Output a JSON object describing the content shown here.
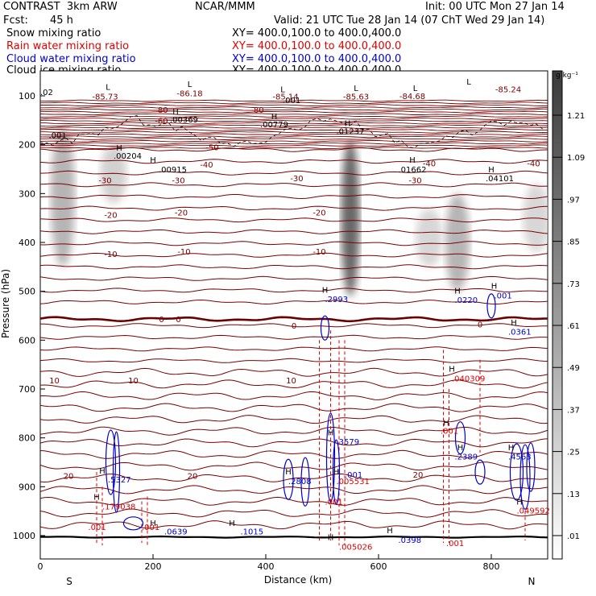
{
  "header": {
    "title_left": "CONTRAST  3km ARW",
    "title_center": "NCAR/MMM",
    "init": "Init: 00 UTC Mon 27 Jan 14",
    "fcst_label": "Fcst:",
    "fcst_value": "45 h",
    "valid": "Valid: 21 UTC Tue 28 Jan 14 (07 ChT Wed 29 Jan 14)",
    "fields": [
      {
        "name": "Snow mixing ratio",
        "xy": "XY= 400.0,100.0 to 400.0,400.0",
        "color": "#000000"
      },
      {
        "name": "Rain water mixing ratio",
        "xy": "XY= 400.0,100.0 to 400.0,400.0",
        "color": "#e00000"
      },
      {
        "name": "Cloud water mixing ratio",
        "xy": "XY= 400.0,100.0 to 400.0,400.0",
        "color": "#0000cc"
      },
      {
        "name": "Cloud ice mixing ratio",
        "xy": "XY= 400.0,100.0 to 400.0,400.0",
        "color": "#000000"
      }
    ]
  },
  "chart_data": {
    "type": "heatmap",
    "title": "Vertical cross-section",
    "xlabel": "Distance (km)",
    "ylabel": "Pressure (hPa)",
    "xlim": [
      0,
      900
    ],
    "ylim": [
      1040,
      50
    ],
    "x_ticks": [
      0,
      200,
      400,
      600,
      800
    ],
    "y_ticks": [
      100,
      200,
      300,
      400,
      500,
      600,
      700,
      800,
      900,
      1000
    ],
    "x_end_labels": {
      "left": "S",
      "right": "N"
    },
    "colorbar": {
      "unit": "g kg⁻¹",
      "labels": [
        "1.21",
        "1.09",
        ".97",
        ".85",
        ".73",
        ".61",
        ".49",
        ".37",
        ".25",
        ".13",
        ".01"
      ]
    },
    "temperature_contours": [
      {
        "label": "-80",
        "p": 128
      },
      {
        "label": "-60",
        "p": 150
      },
      {
        "label": "-50",
        "p": 205
      },
      {
        "label": "-40",
        "p": 238
      },
      {
        "label": "-30",
        "p": 272
      },
      {
        "label": "-20",
        "p": 343
      },
      {
        "label": "-10",
        "p": 423
      },
      {
        "label": "0",
        "p": 557
      },
      {
        "label": "10",
        "p": 682
      },
      {
        "label": "20",
        "p": 877
      }
    ],
    "contour_labels": [
      {
        "text": "-85.73",
        "x": 115,
        "p": 101,
        "color": "#7a0000"
      },
      {
        "text": "-86.18",
        "x": 265,
        "p": 94,
        "color": "#7a0000"
      },
      {
        "text": "-85.63",
        "x": 560,
        "p": 101,
        "color": "#7a0000"
      },
      {
        "text": "-84.68",
        "x": 660,
        "p": 100,
        "color": "#7a0000"
      },
      {
        "text": "-85.24",
        "x": 830,
        "p": 86,
        "color": "#7a0000"
      },
      {
        "text": "-85.14",
        "x": 435,
        "p": 101,
        "color": "#7a0000"
      },
      {
        "text": "-80",
        "x": 215,
        "p": 128,
        "color": "#7a0000"
      },
      {
        "text": "-80",
        "x": 385,
        "p": 128,
        "color": "#7a0000"
      },
      {
        "text": "-60",
        "x": 215,
        "p": 150,
        "color": "#7a0000"
      },
      {
        "text": "-50",
        "x": 305,
        "p": 205,
        "color": "#7a0000"
      },
      {
        "text": "-40",
        "x": 295,
        "p": 240,
        "color": "#7a0000"
      },
      {
        "text": "-40",
        "x": 690,
        "p": 238,
        "color": "#7a0000"
      },
      {
        "text": "-40",
        "x": 875,
        "p": 238,
        "color": "#7a0000"
      },
      {
        "text": "-30",
        "x": 115,
        "p": 272,
        "color": "#7a0000"
      },
      {
        "text": "-30",
        "x": 245,
        "p": 272,
        "color": "#7a0000"
      },
      {
        "text": "-30",
        "x": 455,
        "p": 268,
        "color": "#7a0000"
      },
      {
        "text": "-30",
        "x": 665,
        "p": 272,
        "color": "#7a0000"
      },
      {
        "text": "-20",
        "x": 125,
        "p": 343,
        "color": "#7a0000"
      },
      {
        "text": "-20",
        "x": 250,
        "p": 338,
        "color": "#7a0000"
      },
      {
        "text": "-20",
        "x": 495,
        "p": 338,
        "color": "#7a0000"
      },
      {
        "text": "-10",
        "x": 125,
        "p": 423,
        "color": "#7a0000"
      },
      {
        "text": "-10",
        "x": 255,
        "p": 418,
        "color": "#7a0000"
      },
      {
        "text": "-10",
        "x": 495,
        "p": 418,
        "color": "#7a0000"
      },
      {
        "text": "0",
        "x": 215,
        "p": 557,
        "color": "#7a0000"
      },
      {
        "text": "0",
        "x": 245,
        "p": 557,
        "color": "#7a0000"
      },
      {
        "text": "0",
        "x": 450,
        "p": 570,
        "color": "#7a0000"
      },
      {
        "text": "0",
        "x": 780,
        "p": 567,
        "color": "#7a0000"
      },
      {
        "text": "10",
        "x": 25,
        "p": 682,
        "color": "#7a0000"
      },
      {
        "text": "10",
        "x": 165,
        "p": 682,
        "color": "#7a0000"
      },
      {
        "text": "10",
        "x": 445,
        "p": 682,
        "color": "#7a0000"
      },
      {
        "text": "20",
        "x": 50,
        "p": 877,
        "color": "#7a0000"
      },
      {
        "text": "20",
        "x": 270,
        "p": 877,
        "color": "#7a0000"
      },
      {
        "text": "20",
        "x": 670,
        "p": 875,
        "color": "#7a0000"
      }
    ],
    "maxima": [
      {
        "text": ".02",
        "x": 0,
        "p": 92,
        "color": "#000000"
      },
      {
        "text": ".00369",
        "x": 230,
        "p": 148,
        "color": "#000000"
      },
      {
        "text": ".00779",
        "x": 390,
        "p": 158,
        "color": "#000000"
      },
      {
        "text": ".001",
        "x": 430,
        "p": 108,
        "color": "#000000"
      },
      {
        "text": ".01237",
        "x": 525,
        "p": 172,
        "color": "#000000"
      },
      {
        "text": ".001",
        "x": 15,
        "p": 180,
        "color": "#000000"
      },
      {
        "text": ".00204",
        "x": 130,
        "p": 222,
        "color": "#000000"
      },
      {
        "text": ".00915",
        "x": 210,
        "p": 250,
        "color": "#000000"
      },
      {
        "text": ".01662",
        "x": 635,
        "p": 250,
        "color": "#000000"
      },
      {
        "text": ".04101",
        "x": 790,
        "p": 268,
        "color": "#000000"
      },
      {
        "text": ".2993",
        "x": 505,
        "p": 515,
        "color": "#0000cc"
      },
      {
        "text": ".0220",
        "x": 735,
        "p": 517,
        "color": "#0000cc"
      },
      {
        "text": ".001",
        "x": 805,
        "p": 508,
        "color": "#0000cc"
      },
      {
        "text": ".0361",
        "x": 830,
        "p": 582,
        "color": "#0000cc"
      },
      {
        "text": ".040309",
        "x": 730,
        "p": 678,
        "color": "#e00000"
      },
      {
        "text": ".001",
        "x": 710,
        "p": 785,
        "color": "#e00000"
      },
      {
        "text": ".3579",
        "x": 525,
        "p": 807,
        "color": "#0000cc"
      },
      {
        "text": ".2389",
        "x": 735,
        "p": 838,
        "color": "#0000cc"
      },
      {
        "text": ".4563",
        "x": 830,
        "p": 838,
        "color": "#0000cc"
      },
      {
        "text": ".5327",
        "x": 120,
        "p": 885,
        "color": "#0000cc"
      },
      {
        "text": ".2808",
        "x": 440,
        "p": 888,
        "color": "#0000cc"
      },
      {
        "text": ".005531",
        "x": 525,
        "p": 888,
        "color": "#e00000"
      },
      {
        "text": ".001",
        "x": 540,
        "p": 875,
        "color": "#0000cc"
      },
      {
        "text": ".179038",
        "x": 110,
        "p": 940,
        "color": "#e00000"
      },
      {
        "text": ".001",
        "x": 505,
        "p": 930,
        "color": "#e00000"
      },
      {
        "text": ".049592",
        "x": 845,
        "p": 948,
        "color": "#e00000"
      },
      {
        "text": ".001",
        "x": 85,
        "p": 982,
        "color": "#e00000"
      },
      {
        "text": ".001",
        "x": 180,
        "p": 982,
        "color": "#e00000"
      },
      {
        "text": ".0639",
        "x": 220,
        "p": 991,
        "color": "#0000cc"
      },
      {
        "text": ".1015",
        "x": 355,
        "p": 991,
        "color": "#0000cc"
      },
      {
        "text": ".0398",
        "x": 635,
        "p": 1008,
        "color": "#0000cc"
      },
      {
        "text": ".001",
        "x": 720,
        "p": 1015,
        "color": "#e00000"
      },
      {
        "text": ".005026",
        "x": 530,
        "p": 1022,
        "color": "#e00000"
      }
    ],
    "h_markers": [
      {
        "x": 120,
        "p": 83,
        "label": "L"
      },
      {
        "x": 265,
        "p": 77,
        "label": "L"
      },
      {
        "x": 560,
        "p": 85,
        "label": "L"
      },
      {
        "x": 665,
        "p": 85,
        "label": "L"
      },
      {
        "x": 760,
        "p": 72,
        "label": "L"
      },
      {
        "x": 430,
        "p": 88,
        "label": "L"
      },
      {
        "x": 240,
        "p": 133,
        "label": "H"
      },
      {
        "x": 415,
        "p": 143,
        "label": "H"
      },
      {
        "x": 545,
        "p": 157,
        "label": "H"
      },
      {
        "x": 140,
        "p": 207,
        "label": "H"
      },
      {
        "x": 200,
        "p": 232,
        "label": "H"
      },
      {
        "x": 660,
        "p": 232,
        "label": "H"
      },
      {
        "x": 800,
        "p": 252,
        "label": "H"
      },
      {
        "x": 505,
        "p": 498,
        "label": "H"
      },
      {
        "x": 740,
        "p": 500,
        "label": "H"
      },
      {
        "x": 805,
        "p": 490,
        "label": "H"
      },
      {
        "x": 840,
        "p": 565,
        "label": "H"
      },
      {
        "x": 730,
        "p": 660,
        "label": "H"
      },
      {
        "x": 720,
        "p": 770,
        "label": "H"
      },
      {
        "x": 515,
        "p": 790,
        "label": "H"
      },
      {
        "x": 745,
        "p": 820,
        "label": "H"
      },
      {
        "x": 835,
        "p": 820,
        "label": "H"
      },
      {
        "x": 110,
        "p": 868,
        "label": "H"
      },
      {
        "x": 440,
        "p": 870,
        "label": "H"
      },
      {
        "x": 525,
        "p": 870,
        "label": "H"
      },
      {
        "x": 100,
        "p": 922,
        "label": "H"
      },
      {
        "x": 850,
        "p": 932,
        "label": "H"
      },
      {
        "x": 200,
        "p": 975,
        "label": "H"
      },
      {
        "x": 340,
        "p": 975,
        "label": "H"
      },
      {
        "x": 620,
        "p": 990,
        "label": "H"
      },
      {
        "x": 515,
        "p": 1004,
        "label": "H"
      }
    ],
    "shading_plumes": [
      {
        "x": 40,
        "p_top": 160,
        "p_bottom": 450,
        "intensity": 0.35
      },
      {
        "x": 130,
        "p_top": 200,
        "p_bottom": 320,
        "intensity": 0.18
      },
      {
        "x": 550,
        "p_top": 190,
        "p_bottom": 510,
        "intensity": 0.8
      },
      {
        "x": 740,
        "p_top": 300,
        "p_bottom": 500,
        "intensity": 0.35
      },
      {
        "x": 690,
        "p_top": 330,
        "p_bottom": 450,
        "intensity": 0.15
      },
      {
        "x": 880,
        "p_top": 280,
        "p_bottom": 420,
        "intensity": 0.15
      }
    ]
  }
}
